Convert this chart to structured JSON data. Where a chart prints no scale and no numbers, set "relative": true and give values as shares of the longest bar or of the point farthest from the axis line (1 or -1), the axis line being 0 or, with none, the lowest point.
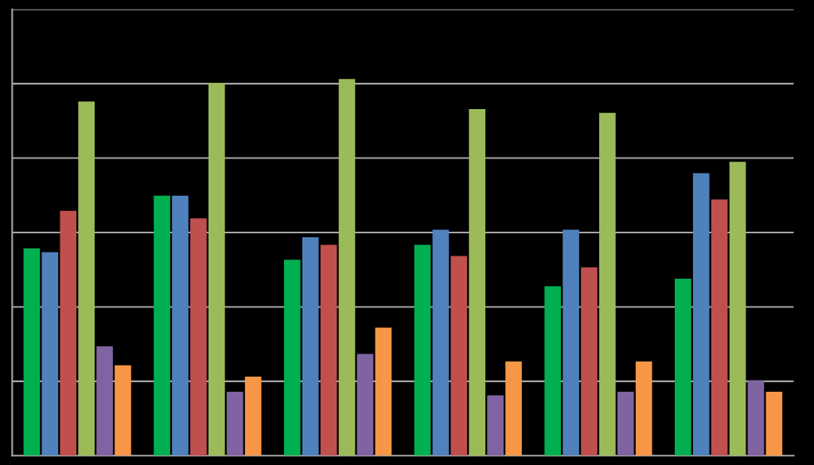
{
  "chart_data": {
    "type": "bar",
    "relative": true,
    "grid": "y",
    "categories": [
      null,
      null,
      null,
      null,
      null,
      null
    ],
    "series": [
      {
        "color": "#00b050",
        "values": [
          0.55,
          0.69,
          0.52,
          0.56,
          0.45,
          0.47
        ]
      },
      {
        "color": "#4f81bd",
        "values": [
          0.54,
          0.69,
          0.58,
          0.6,
          0.6,
          0.75
        ]
      },
      {
        "color": "#c0504d",
        "values": [
          0.65,
          0.63,
          0.56,
          0.53,
          0.5,
          0.68
        ]
      },
      {
        "color": "#9bbb59",
        "values": [
          0.94,
          0.99,
          1.0,
          0.92,
          0.91,
          0.78
        ]
      },
      {
        "color": "#8064a2",
        "values": [
          0.29,
          0.17,
          0.27,
          0.16,
          0.17,
          0.2
        ]
      },
      {
        "color": "#f79646",
        "values": [
          0.24,
          0.21,
          0.34,
          0.25,
          0.25,
          0.17
        ]
      }
    ]
  }
}
